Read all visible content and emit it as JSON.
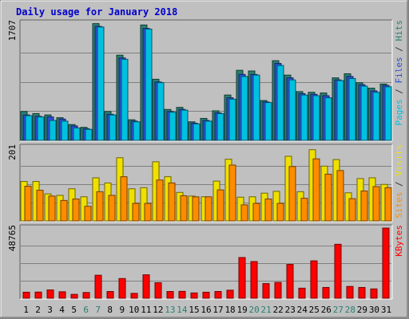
{
  "chart_data": [
    {
      "type": "bar",
      "title": "Daily usage for January 2018",
      "x": [
        "1",
        "2",
        "3",
        "4",
        "5",
        "6",
        "7",
        "8",
        "9",
        "10",
        "11",
        "12",
        "13",
        "14",
        "15",
        "16",
        "17",
        "18",
        "19",
        "20",
        "21",
        "22",
        "23",
        "24",
        "25",
        "26",
        "27",
        "28",
        "29",
        "30",
        "31"
      ],
      "weekend_days": [
        "6",
        "7",
        "13",
        "14",
        "20",
        "21",
        "27",
        "28"
      ],
      "panels": [
        {
          "id": "hits",
          "ymax_label": "1707",
          "ymax": 1707,
          "grid": true,
          "right_labels": [
            {
              "text": "Pages",
              "color": "#00c0e0"
            },
            {
              "text": " / ",
              "color": "#333333"
            },
            {
              "text": "Files",
              "color": "#2a4fd8"
            },
            {
              "text": " / ",
              "color": "#333333"
            },
            {
              "text": "Hits",
              "color": "#2a8070"
            }
          ],
          "series": [
            {
              "name": "Hits",
              "color": "#2a8070",
              "values": [
                420,
                390,
                370,
                330,
                230,
                190,
                1700,
                420,
                1240,
                300,
                1680,
                890,
                450,
                480,
                270,
                320,
                430,
                660,
                1020,
                1010,
                580,
                1160,
                950,
                710,
                700,
                690,
                910,
                970,
                840,
                760,
                820
              ]
            },
            {
              "name": "Files",
              "color": "#2a4fd8",
              "values": [
                370,
                350,
                340,
                310,
                210,
                170,
                1660,
                380,
                1200,
                280,
                1630,
                850,
                420,
                450,
                250,
                290,
                400,
                620,
                960,
                960,
                560,
                1120,
                910,
                680,
                670,
                650,
                880,
                930,
                810,
                720,
                800
              ]
            },
            {
              "name": "Pages",
              "color": "#00c0e0",
              "values": [
                360,
                340,
                290,
                280,
                180,
                160,
                1650,
                370,
                1180,
                270,
                1620,
                840,
                410,
                440,
                240,
                280,
                390,
                600,
                930,
                950,
                550,
                1090,
                880,
                660,
                650,
                620,
                870,
                900,
                790,
                700,
                780
              ]
            }
          ]
        },
        {
          "id": "visits",
          "ymax_label": "201",
          "ymax": 201,
          "grid": true,
          "right_labels": [
            {
              "text": "Sites",
              "color": "#ff8c00"
            },
            {
              "text": " / ",
              "color": "#333333"
            },
            {
              "text": "Visits",
              "color": "#f0e000"
            }
          ],
          "series": [
            {
              "name": "Visits",
              "color": "#f0e000",
              "values": [
                108,
                108,
                74,
                70,
                88,
                66,
                118,
                104,
                173,
                88,
                91,
                162,
                121,
                78,
                68,
                66,
                109,
                169,
                65,
                66,
                76,
                81,
                177,
                80,
                195,
                150,
                168,
                77,
                116,
                118,
                100
              ]
            },
            {
              "name": "Sites",
              "color": "#ff8c00",
              "values": [
                95,
                84,
                68,
                56,
                60,
                40,
                80,
                70,
                121,
                48,
                48,
                112,
                104,
                69,
                66,
                66,
                85,
                153,
                44,
                48,
                60,
                48,
                149,
                62,
                170,
                128,
                138,
                61,
                82,
                94,
                91
              ]
            }
          ]
        },
        {
          "id": "kbytes",
          "ymax_label": "48765",
          "ymax": 48765,
          "grid": true,
          "right_labels": [
            {
              "text": "KBytes",
              "color": "#ff0000"
            }
          ],
          "series": [
            {
              "name": "KBytes",
              "color": "#ff0000",
              "values": [
                4200,
                4300,
                5800,
                4500,
                2700,
                4000,
                16000,
                4700,
                13700,
                3400,
                16300,
                10800,
                4700,
                4800,
                3700,
                4200,
                4700,
                5600,
                28300,
                25500,
                10200,
                11000,
                23500,
                7000,
                26000,
                7500,
                37500,
                8200,
                7500,
                6500,
                48765
              ]
            }
          ]
        }
      ]
    }
  ],
  "colors": {
    "panel_background": "#c0c0c0",
    "page_background": "#ffffff",
    "title": "#0000cc",
    "weekday_label": "#000000",
    "weekend_label": "#2a8070",
    "gridline": "#808080"
  }
}
